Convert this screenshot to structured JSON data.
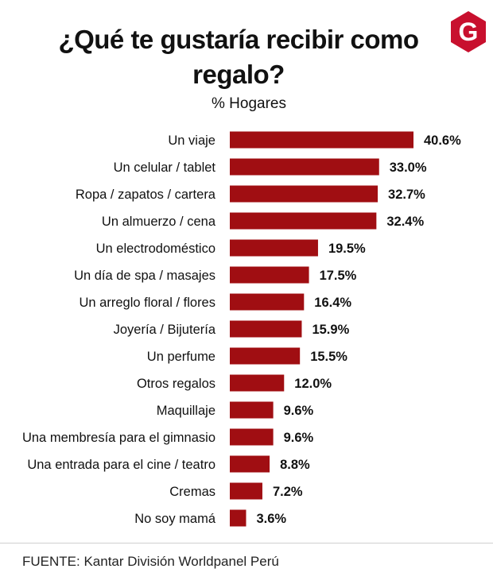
{
  "header": {
    "title": "¿Qué te gustaría recibir como regalo?",
    "subtitle": "% Hogares",
    "logo_letter": "G"
  },
  "footer": {
    "source": "FUENTE: Kantar División Worldpanel Perú"
  },
  "colors": {
    "bar": "#a00e12",
    "logo": "#c8102e"
  },
  "chart_data": {
    "type": "bar",
    "orientation": "horizontal",
    "title": "¿Qué te gustaría recibir como regalo?",
    "subtitle": "% Hogares",
    "categories": [
      "Un viaje",
      "Un celular / tablet",
      "Ropa / zapatos / cartera",
      "Un almuerzo / cena",
      "Un electrodoméstico",
      "Un día de spa / masajes",
      "Un arreglo floral / flores",
      "Joyería / Bijutería",
      "Un perfume",
      "Otros regalos",
      "Maquillaje",
      "Una membresía para el gimnasio",
      "Una entrada para el cine / teatro",
      "Cremas",
      "No soy mamá"
    ],
    "values": [
      40.6,
      33.0,
      32.7,
      32.4,
      19.5,
      17.5,
      16.4,
      15.9,
      15.5,
      12.0,
      9.6,
      9.6,
      8.8,
      7.2,
      3.6
    ],
    "labels": [
      "40.6%",
      "33.0%",
      "32.7%",
      "32.4%",
      "19.5%",
      "17.5%",
      "16.4%",
      "15.9%",
      "15.5%",
      "12.0%",
      "9.6%",
      "9.6%",
      "8.8%",
      "7.2%",
      "3.6%"
    ],
    "xlim": [
      0,
      40.6
    ],
    "grid": false,
    "legend": "none"
  }
}
